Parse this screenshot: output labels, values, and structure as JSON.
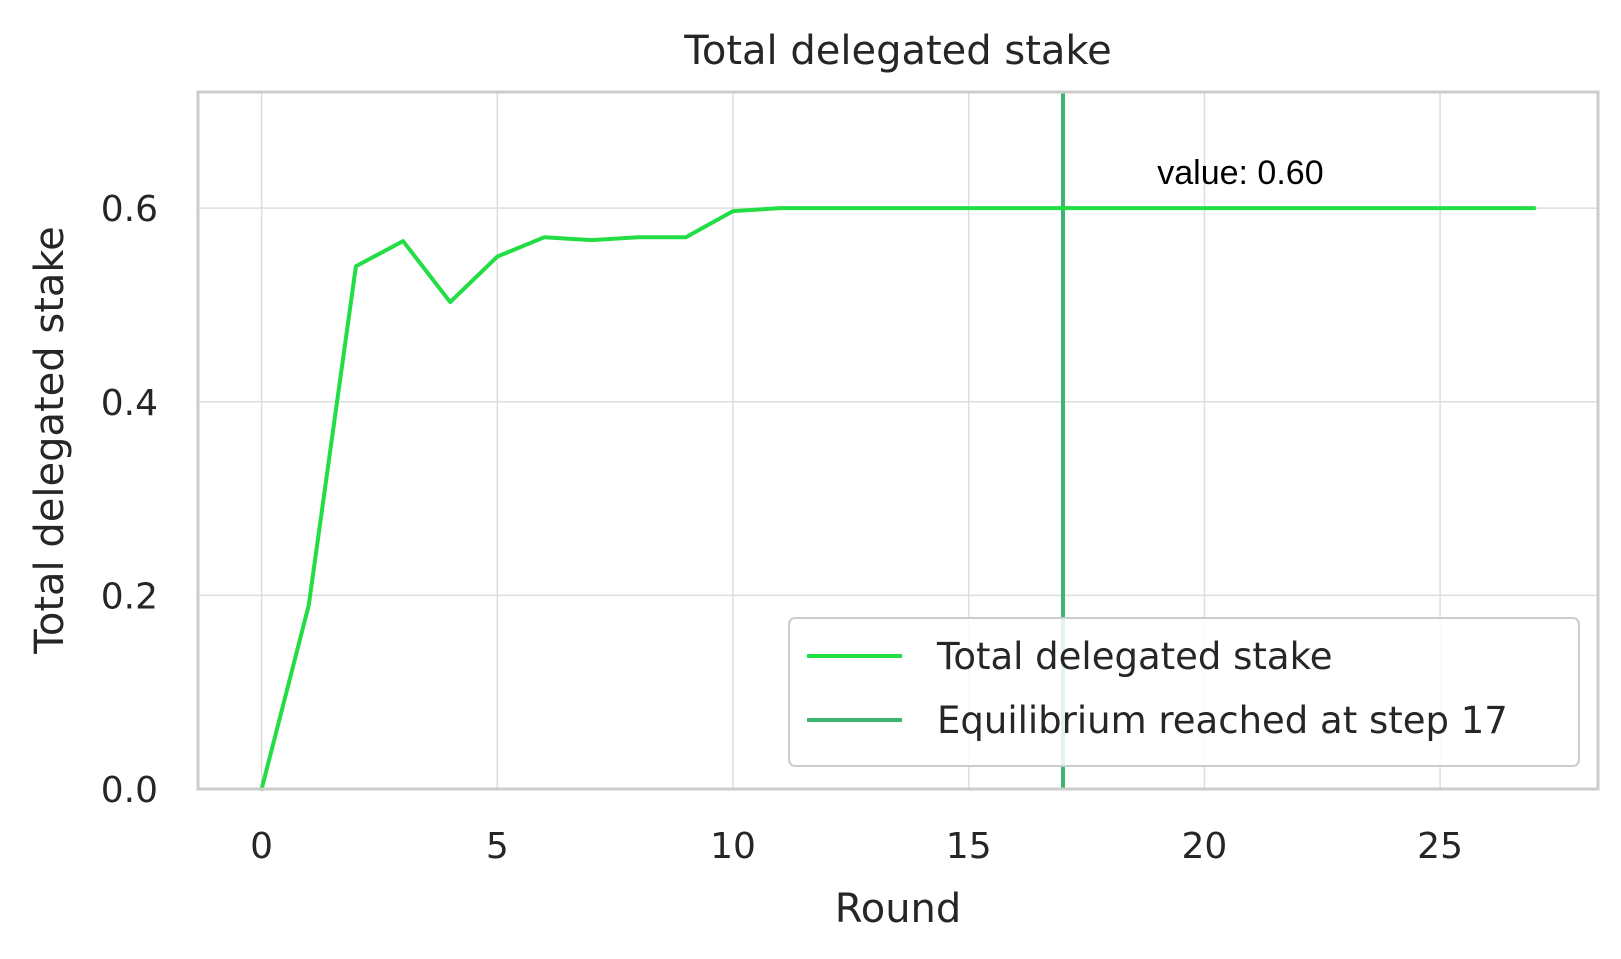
{
  "chart_data": {
    "type": "line",
    "title": "Total delegated stake",
    "xlabel": "Round",
    "ylabel": "Total delegated stake",
    "xlim": [
      -1.35,
      28.35
    ],
    "ylim": [
      0.0,
      0.72
    ],
    "x_ticks": [
      0,
      5,
      10,
      15,
      20,
      25
    ],
    "x_tick_labels": [
      "0",
      "5",
      "10",
      "15",
      "20",
      "25"
    ],
    "y_ticks": [
      0.0,
      0.2,
      0.4,
      0.6
    ],
    "y_tick_labels": [
      "0.0",
      "0.2",
      "0.4",
      "0.6"
    ],
    "grid": true,
    "legend_position": "lower-right",
    "series": [
      {
        "name": "Total delegated stake",
        "color": "#22dd44",
        "x": [
          0,
          1,
          2,
          3,
          4,
          5,
          6,
          7,
          8,
          9,
          10,
          11,
          12,
          13,
          14,
          15,
          16,
          17,
          18,
          19,
          20,
          21,
          22,
          23,
          24,
          25,
          26,
          27
        ],
        "y": [
          0.0,
          0.19,
          0.54,
          0.566,
          0.503,
          0.55,
          0.57,
          0.567,
          0.57,
          0.57,
          0.597,
          0.6,
          0.6,
          0.6,
          0.6,
          0.6,
          0.6,
          0.6,
          0.6,
          0.6,
          0.6,
          0.6,
          0.6,
          0.6,
          0.6,
          0.6,
          0.6,
          0.6
        ]
      }
    ],
    "vlines": [
      {
        "name": "Equilibrium reached at step 17",
        "x": 17,
        "color": "#3cb371"
      }
    ],
    "annotations": [
      {
        "text": "value: 0.60",
        "x": 19,
        "y": 0.625
      }
    ]
  }
}
